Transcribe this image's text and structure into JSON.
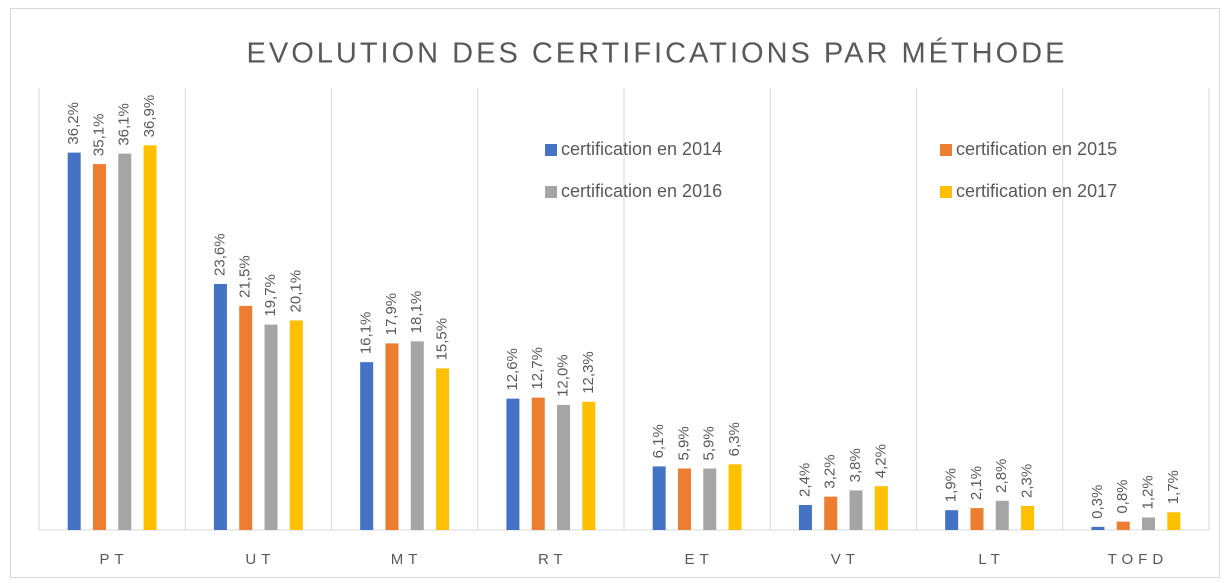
{
  "chart_data": {
    "type": "bar",
    "title": "EVOLUTION DES CERTIFICATIONS PAR MÉTHODE",
    "categories": [
      "PT",
      "UT",
      "MT",
      "RT",
      "ET",
      "VT",
      "LT",
      "TOFD"
    ],
    "series": [
      {
        "name": "certification en 2014",
        "color": "#4472c4",
        "values": [
          36.2,
          23.6,
          16.1,
          12.6,
          6.1,
          2.4,
          1.9,
          0.3
        ],
        "value_labels": [
          "36,2%",
          "23,6%",
          "16,1%",
          "12,6%",
          "6,1%",
          "2,4%",
          "1,9%",
          "0,3%"
        ]
      },
      {
        "name": "certification en 2015",
        "color": "#ed7d31",
        "values": [
          35.1,
          21.5,
          17.9,
          12.7,
          5.9,
          3.2,
          2.1,
          0.8
        ],
        "value_labels": [
          "35,1%",
          "21,5%",
          "17,9%",
          "12,7%",
          "5,9%",
          "3,2%",
          "2,1%",
          "0,8%"
        ]
      },
      {
        "name": "certification en 2016",
        "color": "#a5a5a5",
        "values": [
          36.1,
          19.7,
          18.1,
          12.0,
          5.9,
          3.8,
          2.8,
          1.2
        ],
        "value_labels": [
          "36,1%",
          "19,7%",
          "18,1%",
          "12,0%",
          "5,9%",
          "3,8%",
          "2,8%",
          "1,2%"
        ]
      },
      {
        "name": "certification en 2017",
        "color": "#ffc000",
        "values": [
          36.9,
          20.1,
          15.5,
          12.3,
          6.3,
          4.2,
          2.3,
          1.7
        ],
        "value_labels": [
          "36,9%",
          "20,1%",
          "15,5%",
          "12,3%",
          "6,3%",
          "4,2%",
          "2,3%",
          "1,7%"
        ]
      }
    ],
    "ylim": [
      0,
      40
    ],
    "legend": "top-right"
  }
}
